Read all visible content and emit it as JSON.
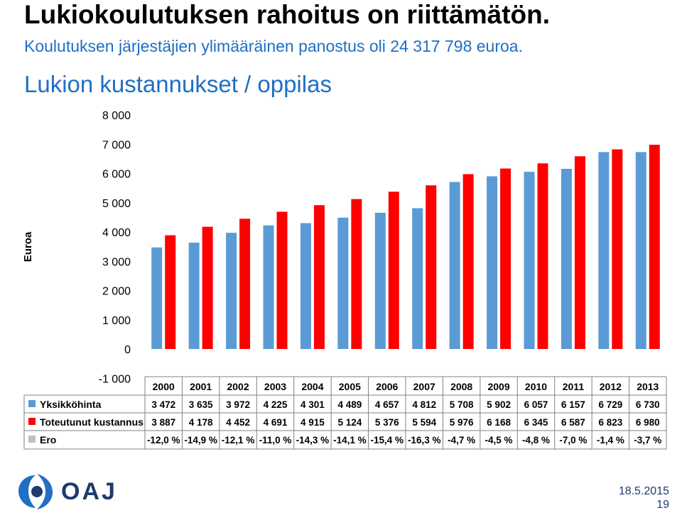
{
  "slide": {
    "title": "Lukiokoulutuksen rahoitus on riittämätön.",
    "subtitle": "Koulutuksen järjestäjien ylimääräinen panostus oli 24 317 798  euroa.",
    "date": "18.5.2015",
    "page_number": "19",
    "logo_text": "OAJ"
  },
  "colors": {
    "yksikkohinta": "#5b9bd5",
    "toteutunut": "#ff0000",
    "ero": "#bfbfbf",
    "heading_blue": "#1f6fc4",
    "logo_blue": "#1f3a6e"
  },
  "chart_data": {
    "type": "bar",
    "title": "Lukion kustannukset / oppilas",
    "ylabel": "Euroa",
    "ylim": [
      -1000,
      8000
    ],
    "yticks": [
      "-1 000",
      "0",
      "1 000",
      "2 000",
      "3 000",
      "4 000",
      "5 000",
      "6 000",
      "7 000",
      "8 000"
    ],
    "categories": [
      "2000",
      "2001",
      "2002",
      "2003",
      "2004",
      "2005",
      "2006",
      "2007",
      "2008",
      "2009",
      "2010",
      "2011",
      "2012",
      "2013"
    ],
    "series": [
      {
        "name": "Yksikköhinta",
        "values": [
          3472,
          3635,
          3972,
          4225,
          4301,
          4489,
          4657,
          4812,
          5708,
          5902,
          6057,
          6157,
          6729,
          6730
        ],
        "labels": [
          "3 472",
          "3 635",
          "3 972",
          "4 225",
          "4 301",
          "4 489",
          "4 657",
          "4 812",
          "5 708",
          "5 902",
          "6 057",
          "6 157",
          "6 729",
          "6 730"
        ]
      },
      {
        "name": "Toteutunut kustannus",
        "values": [
          3887,
          4178,
          4452,
          4691,
          4915,
          5124,
          5376,
          5594,
          5976,
          6168,
          6345,
          6587,
          6823,
          6980
        ],
        "labels": [
          "3 887",
          "4 178",
          "4 452",
          "4 691",
          "4 915",
          "5 124",
          "5 376",
          "5 594",
          "5 976",
          "6 168",
          "6 345",
          "6 587",
          "6 823",
          "6 980"
        ]
      },
      {
        "name": "Ero",
        "values": [
          -12.0,
          -14.9,
          -12.1,
          -11.0,
          -14.3,
          -14.1,
          -15.4,
          -16.3,
          -4.7,
          -4.5,
          -4.8,
          -7.0,
          -1.4,
          -3.7
        ],
        "labels": [
          "-12,0 %",
          "-14,9 %",
          "-12,1 %",
          "-11,0 %",
          "-14,3 %",
          "-14,1 %",
          "-15,4 %",
          "-16,3 %",
          "-4,7 %",
          "-4,5 %",
          "-4,8 %",
          "-7,0 %",
          "-1,4 %",
          "-3,7 %"
        ]
      }
    ],
    "data_table": true,
    "grid": false
  }
}
